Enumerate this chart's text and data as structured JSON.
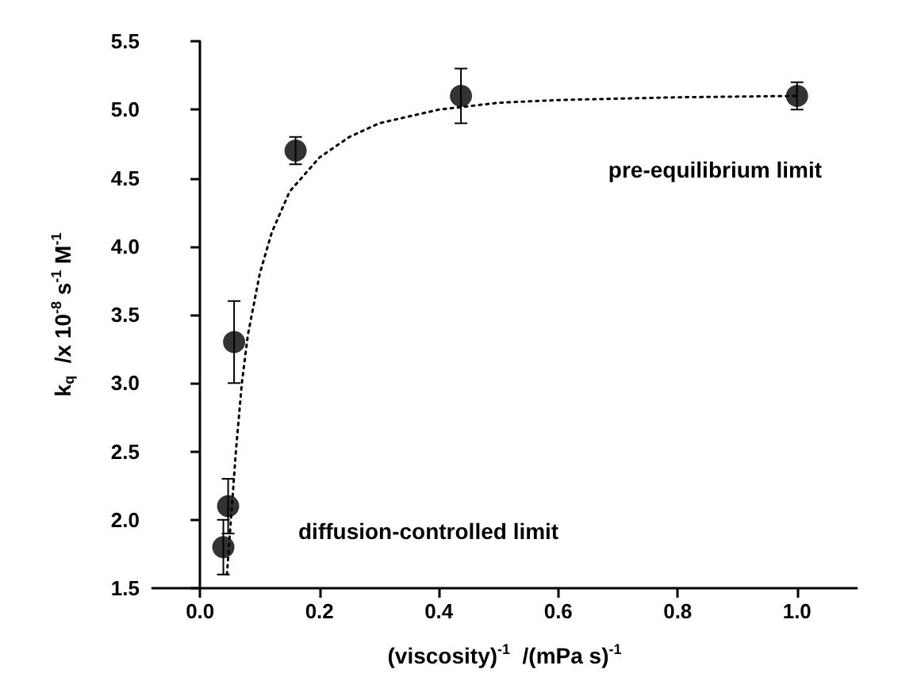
{
  "chart_data": {
    "type": "scatter",
    "xlabel": "(viscosity)$^{-1}$  /(mPa s)$^{-1}$",
    "ylabel": "k$_{q}$  /x 10$^{-8}$ s$^{-1}$ M$^{-1}$",
    "xlim": [
      -0.08,
      1.1
    ],
    "xticks": [
      {
        "value": 0,
        "label": "0.0"
      },
      0.2,
      0.4,
      0.6,
      0.8,
      {
        "value": 1,
        "label": "1.0"
      }
    ],
    "ylim": [
      1.5,
      5.5
    ],
    "yticks": [
      1.5,
      {
        "value": 2,
        "label": "2.0"
      },
      2.5,
      {
        "value": 3,
        "label": "3.0"
      },
      3.5,
      {
        "value": 4,
        "label": "4.0"
      },
      4.5,
      {
        "value": 5,
        "label": "5.0"
      },
      5.5
    ],
    "series": [
      {
        "color": "#000000",
        "marker": "circle",
        "x": [
          0.039,
          0.047,
          0.057,
          0.16,
          0.437,
          1.0
        ],
        "values": [
          1.8,
          2.1,
          3.3,
          4.7,
          5.1,
          5.1
        ],
        "errors": [
          0.2,
          0.2,
          0.3,
          0.1,
          0.2,
          0.1
        ]
      },
      {
        "type": "line",
        "color": "#000000",
        "marker": "none",
        "line_style": "dotted",
        "x": [
          0.045,
          0.05,
          0.06,
          0.07,
          0.08,
          0.1,
          0.12,
          0.15,
          0.2,
          0.25,
          0.3,
          0.4,
          0.5,
          0.6,
          0.8,
          1.0
        ],
        "values": [
          1.6,
          1.9,
          2.5,
          3.0,
          3.35,
          3.8,
          4.1,
          4.4,
          4.65,
          4.8,
          4.9,
          5.0,
          5.05,
          5.07,
          5.09,
          5.1
        ]
      }
    ],
    "annotations": [
      "pre-equilibrium limit",
      "diffusion-controlled limit"
    ]
  }
}
